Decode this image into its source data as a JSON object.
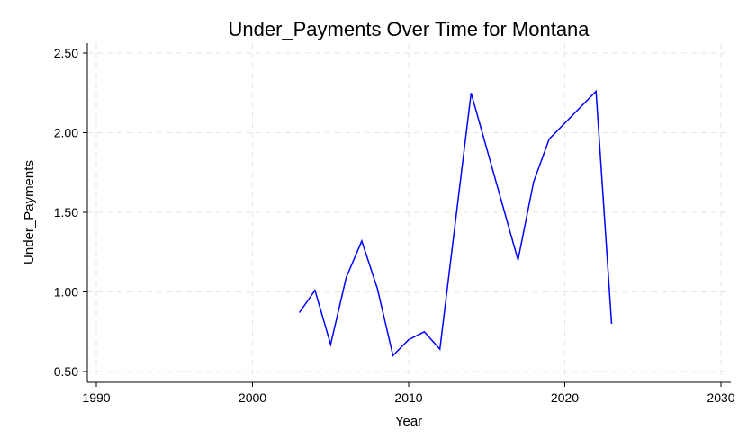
{
  "chart_data": {
    "type": "line",
    "title": "Under_Payments Over Time for Montana",
    "xlabel": "Year",
    "ylabel": "Under_Payments",
    "xlim": [
      1990,
      2030
    ],
    "ylim": [
      0.5,
      2.5
    ],
    "xticks": [
      1990,
      2000,
      2010,
      2020,
      2030
    ],
    "yticks": [
      "0.50",
      "1.00",
      "1.50",
      "2.00",
      "2.50"
    ],
    "grid": true,
    "line_color": "#0000ff",
    "series": [
      {
        "x": [
          2003,
          2004,
          2005,
          2006,
          2007,
          2008,
          2009,
          2010,
          2011,
          2012,
          2014,
          2017,
          2018,
          2019,
          2022,
          2023
        ],
        "values": [
          0.87,
          1.01,
          0.67,
          1.09,
          1.32,
          1.02,
          0.6,
          0.7,
          0.75,
          0.64,
          2.25,
          1.2,
          1.69,
          1.96,
          2.26,
          0.8
        ]
      }
    ]
  }
}
